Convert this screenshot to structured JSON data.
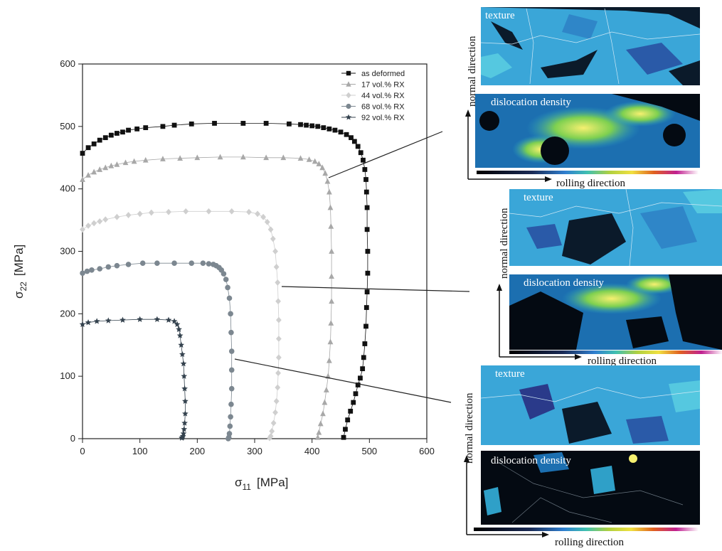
{
  "chart_data": {
    "type": "scatter",
    "title": "",
    "xlabel": "σ",
    "xlabel_sub": "11",
    "xlabel_unit": "[MPa]",
    "ylabel": "σ",
    "ylabel_sub": "22",
    "ylabel_unit": "[MPa]",
    "xlim": [
      0,
      600
    ],
    "ylim": [
      0,
      600
    ],
    "xticks": [
      0,
      100,
      200,
      300,
      400,
      500,
      600
    ],
    "yticks": [
      0,
      100,
      200,
      300,
      400,
      500,
      600
    ],
    "legend_position": "top-right",
    "series": [
      {
        "name": "as deformed",
        "marker": "square",
        "color": "#111111",
        "x": [
          0,
          10,
          20,
          30,
          40,
          50,
          60,
          70,
          80,
          95,
          110,
          140,
          160,
          190,
          230,
          280,
          320,
          360,
          380,
          390,
          400,
          410,
          420,
          430,
          440,
          450,
          460,
          468,
          474,
          480,
          485,
          489,
          492,
          494,
          495,
          496,
          496,
          497,
          497,
          496,
          495,
          494,
          492,
          490,
          488,
          484,
          480,
          476,
          472,
          467,
          462,
          458,
          455
        ],
        "y": [
          457,
          466,
          472,
          478,
          482,
          486,
          489,
          491,
          494,
          496,
          498,
          500,
          502,
          504,
          505,
          505,
          505,
          504,
          503,
          502,
          501,
          500,
          498,
          496,
          494,
          491,
          487,
          482,
          476,
          468,
          458,
          446,
          431,
          415,
          395,
          370,
          335,
          300,
          265,
          235,
          210,
          180,
          152,
          130,
          112,
          97,
          86,
          72,
          58,
          44,
          30,
          15,
          2
        ]
      },
      {
        "name": "17 vol.% RX",
        "marker": "triangle",
        "color": "#a8a8a8",
        "x": [
          0,
          10,
          20,
          30,
          40,
          50,
          60,
          75,
          90,
          110,
          140,
          170,
          200,
          240,
          280,
          320,
          350,
          380,
          395,
          405,
          412,
          418,
          423,
          427,
          430,
          432,
          433,
          434,
          434,
          434,
          433,
          432,
          430,
          428,
          425,
          422,
          419,
          415,
          412,
          410
        ],
        "y": [
          415,
          422,
          427,
          431,
          434,
          437,
          439,
          442,
          444,
          446,
          448,
          449,
          450,
          451,
          451,
          450,
          450,
          449,
          447,
          444,
          440,
          434,
          425,
          412,
          395,
          370,
          340,
          300,
          260,
          220,
          185,
          155,
          125,
          100,
          78,
          58,
          40,
          24,
          10,
          2
        ]
      },
      {
        "name": "44 vol.% RX",
        "marker": "diamond",
        "color": "#cfcfcf",
        "x": [
          0,
          10,
          20,
          30,
          40,
          60,
          80,
          100,
          120,
          150,
          180,
          220,
          260,
          290,
          305,
          315,
          322,
          328,
          332,
          336,
          338,
          340,
          341,
          342,
          342,
          342,
          341,
          340,
          338,
          336,
          333,
          330,
          328,
          326
        ],
        "y": [
          335,
          341,
          345,
          348,
          351,
          355,
          358,
          360,
          362,
          363,
          364,
          364,
          364,
          363,
          360,
          355,
          347,
          335,
          320,
          300,
          275,
          250,
          220,
          190,
          160,
          130,
          105,
          82,
          60,
          42,
          25,
          12,
          4,
          1
        ]
      },
      {
        "name": "68 vol.% RX",
        "marker": "circle",
        "color": "#7c8790",
        "x": [
          0,
          8,
          16,
          30,
          45,
          60,
          80,
          105,
          130,
          160,
          190,
          210,
          220,
          228,
          233,
          238,
          242,
          246,
          250,
          253,
          256,
          258,
          259,
          260,
          260,
          260,
          259,
          258,
          257,
          256,
          255,
          254
        ],
        "y": [
          265,
          268,
          270,
          272,
          275,
          277,
          279,
          281,
          281,
          281,
          281,
          281,
          280,
          279,
          277,
          274,
          270,
          264,
          255,
          242,
          225,
          200,
          170,
          140,
          110,
          80,
          55,
          35,
          20,
          8,
          2,
          0
        ]
      },
      {
        "name": "92 vol.% RX",
        "marker": "star",
        "color": "#34424e",
        "x": [
          0,
          10,
          25,
          45,
          70,
          100,
          130,
          150,
          160,
          165,
          168,
          170,
          172,
          174,
          176,
          177,
          178,
          179,
          179,
          178,
          177,
          176,
          175,
          174,
          173
        ],
        "y": [
          183,
          186,
          188,
          189,
          190,
          191,
          191,
          190,
          188,
          183,
          175,
          165,
          150,
          135,
          120,
          100,
          80,
          60,
          40,
          25,
          15,
          8,
          4,
          2,
          1
        ]
      }
    ]
  },
  "panels": [
    {
      "texture_label": "texture",
      "dislocation_label": "dislocation density",
      "normal_label": "normal direction",
      "rolling_label": "rolling direction"
    },
    {
      "texture_label": "texture",
      "dislocation_label": "dislocation density",
      "normal_label": "normal direction",
      "rolling_label": "rolling direction"
    },
    {
      "texture_label": "texture",
      "dislocation_label": "dislocation density",
      "normal_label": "normal direction",
      "rolling_label": "rolling direction"
    }
  ],
  "colors": {
    "texture_base": "#3aa6d8",
    "dislocation_base": "#0b1a2a",
    "hot": "#f4f060"
  }
}
